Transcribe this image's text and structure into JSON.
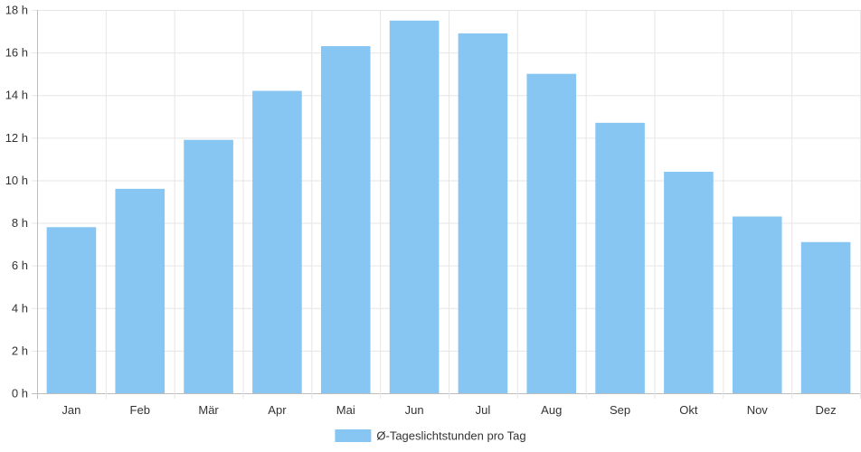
{
  "chart_data": {
    "type": "bar",
    "categories": [
      "Jan",
      "Feb",
      "Mär",
      "Apr",
      "Mai",
      "Jun",
      "Jul",
      "Aug",
      "Sep",
      "Okt",
      "Nov",
      "Dez"
    ],
    "series": [
      {
        "name": "Ø-Tageslichtstunden pro Tag",
        "values": [
          7.8,
          9.6,
          11.9,
          14.2,
          16.3,
          17.5,
          16.9,
          15.0,
          12.7,
          10.4,
          8.3,
          7.1
        ],
        "color": "#87c6f2"
      }
    ],
    "yticks": [
      "0 h",
      "2 h",
      "4 h",
      "6 h",
      "8 h",
      "10 h",
      "12 h",
      "14 h",
      "16 h",
      "18 h"
    ],
    "ylim": [
      0,
      18
    ],
    "ytick_step": 2,
    "grid": true,
    "legend_position": "bottom"
  }
}
